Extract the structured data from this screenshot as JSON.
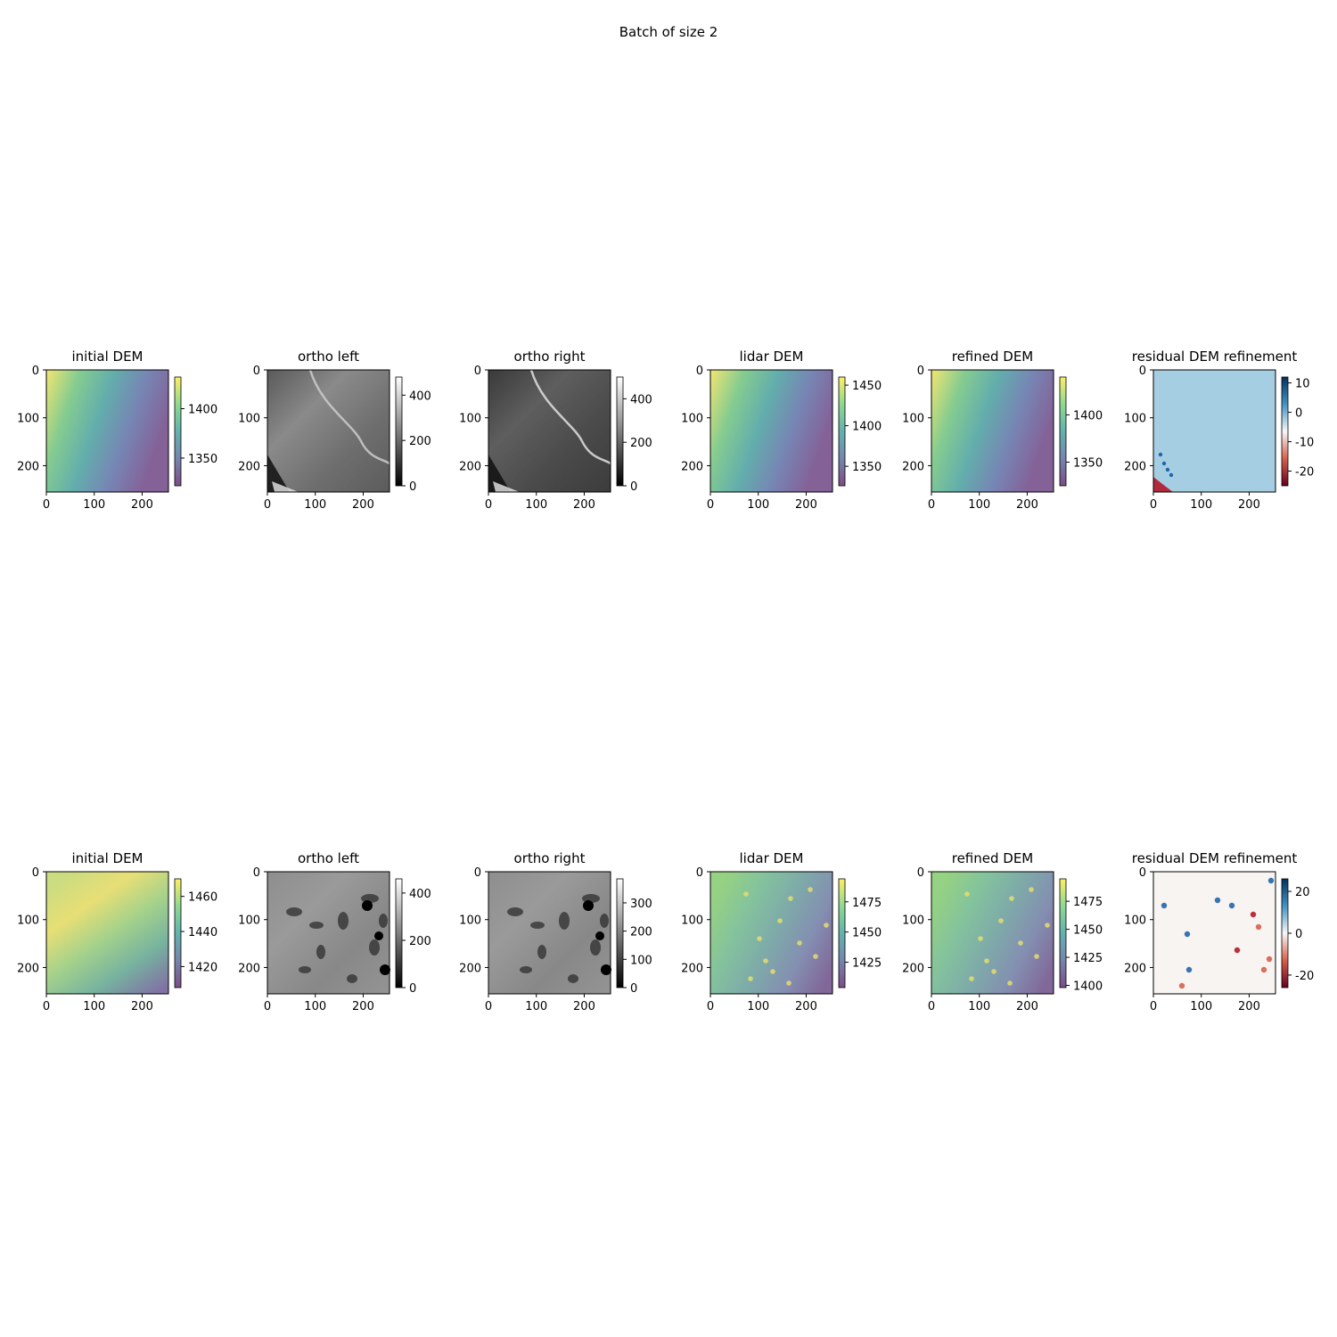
{
  "figure_title": "Batch of size 2",
  "colors": {
    "viridis": [
      "#440154",
      "#3b528b",
      "#21918c",
      "#5ec962",
      "#fde725"
    ],
    "rdbu": [
      "#67001f",
      "#d6604d",
      "#f7f7f7",
      "#4393c3",
      "#053061"
    ],
    "gray": [
      "#000000",
      "#ffffff"
    ]
  },
  "chart_data": [
    {
      "type": "heatmap",
      "row": 0,
      "col": 0,
      "title": "initial DEM",
      "colormap": "viridis",
      "alpha": 0.55,
      "x_ticks": [
        0,
        100,
        200
      ],
      "y_ticks": [
        0,
        100,
        200
      ],
      "xlim": [
        0,
        255
      ],
      "ylim": [
        255,
        0
      ],
      "colorbar": {
        "ticks": [
          1350,
          1400
        ],
        "range": [
          1322,
          1432
        ]
      }
    },
    {
      "type": "heatmap",
      "row": 0,
      "col": 1,
      "title": "ortho left",
      "colormap": "gray",
      "x_ticks": [
        0,
        100,
        200
      ],
      "y_ticks": [
        0,
        100,
        200
      ],
      "xlim": [
        0,
        255
      ],
      "ylim": [
        255,
        0
      ],
      "colorbar": {
        "ticks": [
          0,
          200,
          400
        ],
        "range": [
          0,
          480
        ]
      }
    },
    {
      "type": "heatmap",
      "row": 0,
      "col": 2,
      "title": "ortho right",
      "colormap": "gray",
      "x_ticks": [
        0,
        100,
        200
      ],
      "y_ticks": [
        0,
        100,
        200
      ],
      "xlim": [
        0,
        255
      ],
      "ylim": [
        255,
        0
      ],
      "colorbar": {
        "ticks": [
          0,
          200,
          400
        ],
        "range": [
          0,
          500
        ]
      }
    },
    {
      "type": "heatmap",
      "row": 0,
      "col": 3,
      "title": "lidar DEM",
      "colormap": "viridis",
      "alpha": 0.55,
      "x_ticks": [
        0,
        100,
        200
      ],
      "y_ticks": [
        0,
        100,
        200
      ],
      "xlim": [
        0,
        255
      ],
      "ylim": [
        255,
        0
      ],
      "colorbar": {
        "ticks": [
          1350,
          1400,
          1450
        ],
        "range": [
          1326,
          1460
        ]
      }
    },
    {
      "type": "heatmap",
      "row": 0,
      "col": 4,
      "title": "refined DEM",
      "colormap": "viridis",
      "alpha": 0.55,
      "x_ticks": [
        0,
        100,
        200
      ],
      "y_ticks": [
        0,
        100,
        200
      ],
      "xlim": [
        0,
        255
      ],
      "ylim": [
        255,
        0
      ],
      "colorbar": {
        "ticks": [
          1350,
          1400
        ],
        "range": [
          1325,
          1440
        ]
      }
    },
    {
      "type": "heatmap",
      "row": 0,
      "col": 5,
      "title": "residual DEM refinement",
      "colormap": "rdbu",
      "x_ticks": [
        0,
        100,
        200
      ],
      "y_ticks": [
        0,
        100,
        200
      ],
      "xlim": [
        0,
        255
      ],
      "ylim": [
        255,
        0
      ],
      "colorbar": {
        "ticks": [
          -20,
          -10,
          0,
          10
        ],
        "range": [
          -25,
          12
        ]
      }
    },
    {
      "type": "heatmap",
      "row": 1,
      "col": 0,
      "title": "initial DEM",
      "colormap": "viridis",
      "alpha": 0.55,
      "x_ticks": [
        0,
        100,
        200
      ],
      "y_ticks": [
        0,
        100,
        200
      ],
      "xlim": [
        0,
        255
      ],
      "ylim": [
        255,
        0
      ],
      "colorbar": {
        "ticks": [
          1420,
          1440,
          1460
        ],
        "range": [
          1408,
          1470
        ]
      }
    },
    {
      "type": "heatmap",
      "row": 1,
      "col": 1,
      "title": "ortho left",
      "colormap": "gray",
      "x_ticks": [
        0,
        100,
        200
      ],
      "y_ticks": [
        0,
        100,
        200
      ],
      "xlim": [
        0,
        255
      ],
      "ylim": [
        255,
        0
      ],
      "colorbar": {
        "ticks": [
          0,
          200,
          400
        ],
        "range": [
          0,
          460
        ]
      }
    },
    {
      "type": "heatmap",
      "row": 1,
      "col": 2,
      "title": "ortho right",
      "colormap": "gray",
      "x_ticks": [
        0,
        100,
        200
      ],
      "y_ticks": [
        0,
        100,
        200
      ],
      "xlim": [
        0,
        255
      ],
      "ylim": [
        255,
        0
      ],
      "colorbar": {
        "ticks": [
          0,
          100,
          200,
          300
        ],
        "range": [
          0,
          385
        ]
      }
    },
    {
      "type": "heatmap",
      "row": 1,
      "col": 3,
      "title": "lidar DEM",
      "colormap": "viridis",
      "alpha": 0.55,
      "x_ticks": [
        0,
        100,
        200
      ],
      "y_ticks": [
        0,
        100,
        200
      ],
      "xlim": [
        0,
        255
      ],
      "ylim": [
        255,
        0
      ],
      "colorbar": {
        "ticks": [
          1425,
          1450,
          1475
        ],
        "range": [
          1404,
          1494
        ]
      }
    },
    {
      "type": "heatmap",
      "row": 1,
      "col": 4,
      "title": "refined DEM",
      "colormap": "viridis",
      "alpha": 0.55,
      "x_ticks": [
        0,
        100,
        200
      ],
      "y_ticks": [
        0,
        100,
        200
      ],
      "xlim": [
        0,
        255
      ],
      "ylim": [
        255,
        0
      ],
      "colorbar": {
        "ticks": [
          1400,
          1425,
          1450,
          1475
        ],
        "range": [
          1398,
          1495
        ]
      }
    },
    {
      "type": "heatmap",
      "row": 1,
      "col": 5,
      "title": "residual DEM refinement",
      "colormap": "rdbu",
      "x_ticks": [
        0,
        100,
        200
      ],
      "y_ticks": [
        0,
        100,
        200
      ],
      "xlim": [
        0,
        255
      ],
      "ylim": [
        255,
        0
      ],
      "colorbar": {
        "ticks": [
          -20,
          0,
          20
        ],
        "range": [
          -26,
          26
        ]
      }
    }
  ]
}
